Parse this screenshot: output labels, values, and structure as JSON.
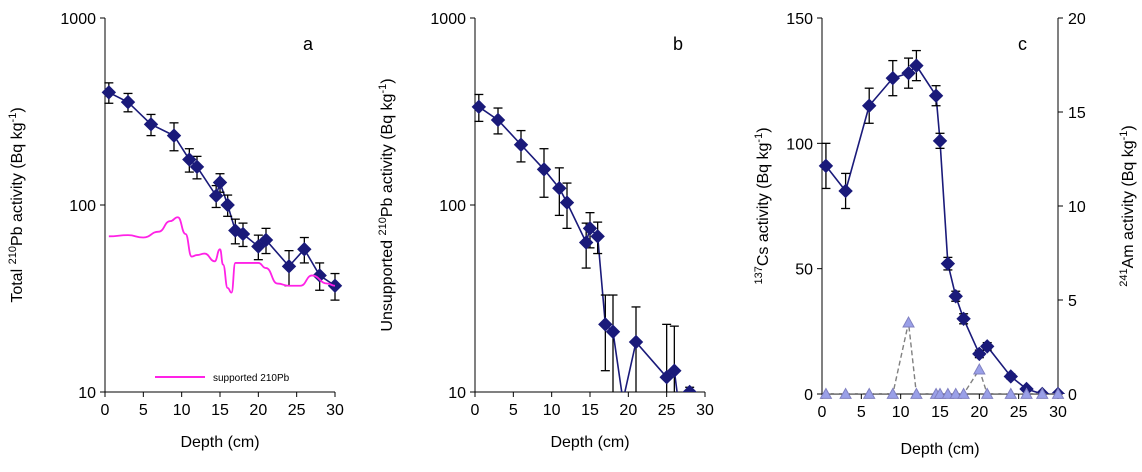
{
  "colors": {
    "series": "#1a1a7a",
    "supported": "#ff22e6",
    "americium": "#8080c0",
    "americium_fill": "#9aa0e8",
    "axis": "#000000"
  },
  "chart_data": [
    {
      "type": "scatter",
      "panel_label": "a",
      "xlabel": "Depth (cm)",
      "ylabel_pre": "Total ",
      "ylabel_sup": "210",
      "ylabel_post": "Pb activity (Bq kg",
      "ylabel_sup2": "-1",
      "ylabel_end": ")",
      "xlim": [
        0,
        30
      ],
      "ylim": [
        10,
        1000
      ],
      "yscale": "log",
      "xticks": [
        "0",
        "5",
        "10",
        "15",
        "20",
        "25",
        "30"
      ],
      "yticks": [
        "10",
        "100",
        "1000"
      ],
      "grid": false,
      "legend_label": "supported 210Pb",
      "legend_position": "bottom",
      "series": [
        {
          "values": [
            {
              "x": 0.5,
              "y": 400,
              "err": 50
            },
            {
              "x": 3,
              "y": 355,
              "err": 40
            },
            {
              "x": 6,
              "y": 270,
              "err": 35
            },
            {
              "x": 9,
              "y": 235,
              "err": 40
            },
            {
              "x": 11,
              "y": 175,
              "err": 25
            },
            {
              "x": 12,
              "y": 160,
              "err": 22
            },
            {
              "x": 14.5,
              "y": 112,
              "err": 15
            },
            {
              "x": 15,
              "y": 132,
              "err": 15
            },
            {
              "x": 16,
              "y": 100,
              "err": 13
            },
            {
              "x": 17,
              "y": 73,
              "err": 11
            },
            {
              "x": 18,
              "y": 70,
              "err": 10
            },
            {
              "x": 20,
              "y": 60,
              "err": 9
            },
            {
              "x": 21,
              "y": 65,
              "err": 10
            },
            {
              "x": 24,
              "y": 47,
              "err": 10
            },
            {
              "x": 26,
              "y": 58,
              "err": 9
            },
            {
              "x": 28,
              "y": 42,
              "err": 7
            },
            {
              "x": 30,
              "y": 37,
              "err": 6
            }
          ]
        },
        {
          "name": "supported 210Pb",
          "line_only": true,
          "values": [
            {
              "x": 0.5,
              "y": 68
            },
            {
              "x": 3,
              "y": 69
            },
            {
              "x": 5,
              "y": 67
            },
            {
              "x": 7,
              "y": 72
            },
            {
              "x": 8.5,
              "y": 82
            },
            {
              "x": 9.5,
              "y": 86
            },
            {
              "x": 10.5,
              "y": 70
            },
            {
              "x": 11.3,
              "y": 53
            },
            {
              "x": 12,
              "y": 54
            },
            {
              "x": 13,
              "y": 55
            },
            {
              "x": 14.3,
              "y": 50
            },
            {
              "x": 15,
              "y": 58
            },
            {
              "x": 15.4,
              "y": 48
            },
            {
              "x": 16,
              "y": 36
            },
            {
              "x": 16.5,
              "y": 34
            },
            {
              "x": 17,
              "y": 49
            },
            {
              "x": 19,
              "y": 49
            },
            {
              "x": 20,
              "y": 49
            },
            {
              "x": 21,
              "y": 46
            },
            {
              "x": 22.5,
              "y": 38
            },
            {
              "x": 24,
              "y": 37
            },
            {
              "x": 25.5,
              "y": 37
            },
            {
              "x": 27,
              "y": 42
            },
            {
              "x": 29,
              "y": 38
            },
            {
              "x": 30,
              "y": 37
            }
          ]
        }
      ]
    },
    {
      "type": "scatter",
      "panel_label": "b",
      "xlabel": "Depth (cm)",
      "ylabel_pre": "Unsupported ",
      "ylabel_sup": "210",
      "ylabel_post": "Pb activity (Bq kg",
      "ylabel_sup2": "-1",
      "ylabel_end": ")",
      "xlim": [
        0,
        30
      ],
      "ylim": [
        10,
        1000
      ],
      "yscale": "log",
      "xticks": [
        "0",
        "5",
        "10",
        "15",
        "20",
        "25",
        "30"
      ],
      "yticks": [
        "10",
        "100",
        "1000"
      ],
      "grid": false,
      "series": [
        {
          "values": [
            {
              "x": 0.5,
              "y": 335,
              "err": 55
            },
            {
              "x": 3,
              "y": 285,
              "err": 45
            },
            {
              "x": 6,
              "y": 210,
              "err": 40
            },
            {
              "x": 9,
              "y": 155,
              "err": 45
            },
            {
              "x": 11,
              "y": 123,
              "err": 35
            },
            {
              "x": 12,
              "y": 103,
              "err": 28
            },
            {
              "x": 14.5,
              "y": 63,
              "err": 17
            },
            {
              "x": 15,
              "y": 75,
              "err": 16
            },
            {
              "x": 16,
              "y": 68,
              "err": 13
            },
            {
              "x": 17,
              "y": 23,
              "err": 10
            },
            {
              "x": 18,
              "y": 21,
              "err": 12
            },
            {
              "x": 19.3,
              "y": 9
            },
            {
              "x": 21,
              "y": 18.5,
              "err": 10
            },
            {
              "x": 25,
              "y": 12,
              "err": 11
            },
            {
              "x": 26,
              "y": 13,
              "err": 9.5
            },
            {
              "x": 26.5,
              "y": 9
            },
            {
              "x": 28,
              "y": 10,
              "err": 0.6
            }
          ]
        }
      ]
    },
    {
      "type": "line",
      "panel_label": "c",
      "xlabel": "Depth (cm)",
      "ylabel_pre": "",
      "ylabel_sup": "137",
      "ylabel_post": "Cs activity (Bq kg",
      "ylabel_sup2": "-1",
      "ylabel_end": ")",
      "y2label_sup": "241",
      "y2label_post": "Am activity (Bq kg",
      "y2label_sup2": "-1",
      "y2label_end": ")",
      "xlim": [
        0,
        30
      ],
      "ylim": [
        0,
        150
      ],
      "y2lim": [
        0,
        20
      ],
      "xticks": [
        "0",
        "5",
        "10",
        "15",
        "20",
        "25",
        "30"
      ],
      "yticks": [
        "0",
        "50",
        "100",
        "150"
      ],
      "y2ticks": [
        "0",
        "5",
        "10",
        "15",
        "20"
      ],
      "grid": false,
      "series": [
        {
          "axis": "left",
          "values": [
            {
              "x": 0.5,
              "y": 91,
              "err": 9
            },
            {
              "x": 3,
              "y": 81,
              "err": 7
            },
            {
              "x": 6,
              "y": 115,
              "err": 7
            },
            {
              "x": 9,
              "y": 126,
              "err": 7
            },
            {
              "x": 11,
              "y": 128,
              "err": 6
            },
            {
              "x": 12,
              "y": 131,
              "err": 6
            },
            {
              "x": 14.5,
              "y": 119,
              "err": 4
            },
            {
              "x": 15,
              "y": 101,
              "err": 3
            },
            {
              "x": 16,
              "y": 52,
              "err": 2.5
            },
            {
              "x": 17,
              "y": 39,
              "err": 2
            },
            {
              "x": 18,
              "y": 30,
              "err": 2
            },
            {
              "x": 20,
              "y": 16,
              "err": 1.5
            },
            {
              "x": 21,
              "y": 19,
              "err": 1.5
            },
            {
              "x": 24,
              "y": 7,
              "err": 1
            },
            {
              "x": 26,
              "y": 2,
              "err": 0.5
            },
            {
              "x": 28,
              "y": 0,
              "err": 0
            },
            {
              "x": 30,
              "y": 0,
              "err": 0
            }
          ]
        },
        {
          "axis": "right",
          "dashed": true,
          "values": [
            {
              "x": 0.5,
              "y": 0
            },
            {
              "x": 3,
              "y": 0
            },
            {
              "x": 6,
              "y": 0
            },
            {
              "x": 9,
              "y": 0
            },
            {
              "x": 11,
              "y": 3.8
            },
            {
              "x": 12,
              "y": 0
            },
            {
              "x": 14.5,
              "y": 0
            },
            {
              "x": 15,
              "y": 0
            },
            {
              "x": 16,
              "y": 0
            },
            {
              "x": 17,
              "y": 0
            },
            {
              "x": 18,
              "y": 0
            },
            {
              "x": 20,
              "y": 1.3
            },
            {
              "x": 21,
              "y": 0
            },
            {
              "x": 24,
              "y": 0
            },
            {
              "x": 26,
              "y": 0
            },
            {
              "x": 28,
              "y": 0
            },
            {
              "x": 30,
              "y": 0
            }
          ]
        }
      ]
    }
  ]
}
